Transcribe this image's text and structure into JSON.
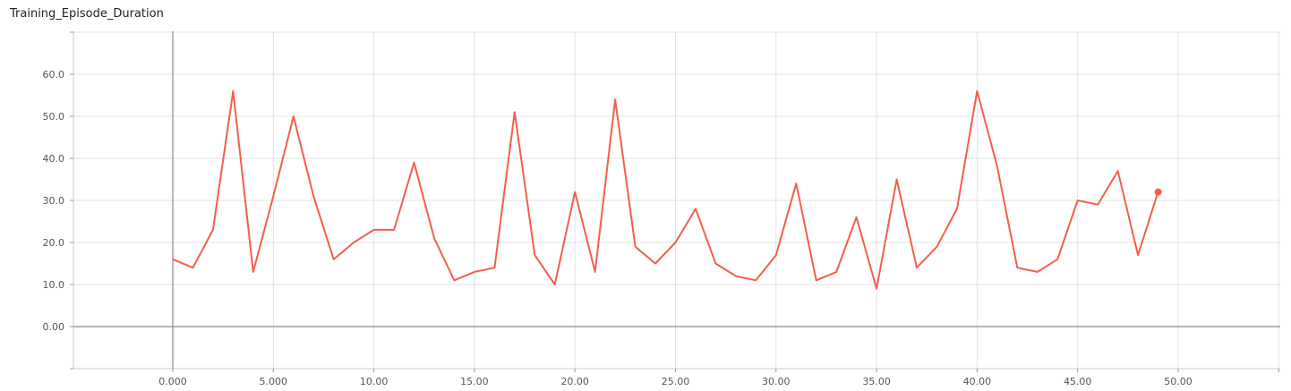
{
  "chart_data": {
    "type": "line",
    "title": "Training_Episode_Duration",
    "xlabel": "",
    "ylabel": "",
    "xlim": [
      -5,
      50
    ],
    "ylim": [
      -10,
      70
    ],
    "x_ticks": [
      "0.000",
      "5.000",
      "10.00",
      "15.00",
      "20.00",
      "25.00",
      "30.00",
      "35.00",
      "40.00",
      "45.00",
      "50.00"
    ],
    "y_ticks": [
      "0.00",
      "10.0",
      "20.0",
      "30.0",
      "40.0",
      "50.0",
      "60.0"
    ],
    "grid": true,
    "series": [
      {
        "color": "#f25f4c",
        "x": [
          0,
          1,
          2,
          3,
          4,
          5,
          6,
          7,
          8,
          9,
          10,
          11,
          12,
          13,
          14,
          15,
          16,
          17,
          18,
          19,
          20,
          21,
          22,
          23,
          24,
          25,
          26,
          27,
          28,
          29,
          30,
          31,
          32,
          33,
          34,
          35,
          36,
          37,
          38,
          39,
          40,
          41,
          42,
          43,
          44,
          45,
          46,
          47,
          48,
          49
        ],
        "values": [
          16,
          14,
          23,
          56,
          13,
          31,
          50,
          31,
          16,
          20,
          23,
          23,
          39,
          21,
          11,
          13,
          14,
          51,
          17,
          10,
          32,
          13,
          54,
          19,
          15,
          20,
          28,
          15,
          12,
          11,
          17,
          34,
          11,
          13,
          26,
          9,
          35,
          14,
          19,
          28,
          56,
          38,
          14,
          13,
          16,
          30,
          29,
          37,
          17,
          32
        ]
      }
    ]
  }
}
